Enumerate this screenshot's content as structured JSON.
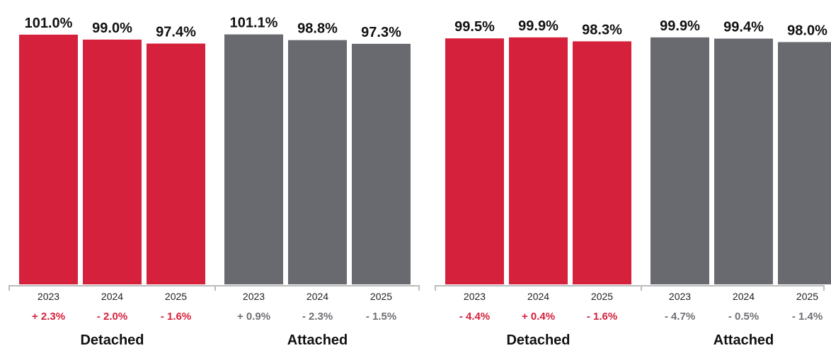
{
  "colors": {
    "detached": "#d5213c",
    "attached": "#696a6f",
    "axis": "#bbbbbb",
    "detached_change": "#d5213c",
    "attached_change": "#6f7074"
  },
  "chart_data": [
    {
      "type": "bar",
      "title": "",
      "xlabel": "",
      "ylabel": "",
      "ylim": [
        0,
        103
      ],
      "grid": false,
      "groups": [
        {
          "label": "Detached",
          "color_key": "detached",
          "categories": [
            "2023",
            "2024",
            "2025"
          ],
          "values": [
            101.0,
            99.0,
            97.4
          ],
          "value_labels": [
            "101.0%",
            "99.0%",
            "97.4%"
          ],
          "changes": [
            "+ 2.3%",
            "- 2.0%",
            "- 1.6%"
          ]
        },
        {
          "label": "Attached",
          "color_key": "attached",
          "categories": [
            "2023",
            "2024",
            "2025"
          ],
          "values": [
            101.1,
            98.8,
            97.3
          ],
          "value_labels": [
            "101.1%",
            "98.8%",
            "97.3%"
          ],
          "changes": [
            "+ 0.9%",
            "- 2.3%",
            "- 1.5%"
          ]
        }
      ]
    },
    {
      "type": "bar",
      "title": "",
      "xlabel": "",
      "ylabel": "",
      "ylim": [
        0,
        103
      ],
      "grid": false,
      "groups": [
        {
          "label": "Detached",
          "color_key": "detached",
          "categories": [
            "2023",
            "2024",
            "2025"
          ],
          "values": [
            99.5,
            99.9,
            98.3
          ],
          "value_labels": [
            "99.5%",
            "99.9%",
            "98.3%"
          ],
          "changes": [
            "- 4.4%",
            "+ 0.4%",
            "- 1.6%"
          ]
        },
        {
          "label": "Attached",
          "color_key": "attached",
          "categories": [
            "2023",
            "2024",
            "2025"
          ],
          "values": [
            99.9,
            99.4,
            98.0
          ],
          "value_labels": [
            "99.9%",
            "99.4%",
            "98.0%"
          ],
          "changes": [
            "- 4.7%",
            "- 0.5%",
            "- 1.4%"
          ]
        }
      ]
    }
  ]
}
